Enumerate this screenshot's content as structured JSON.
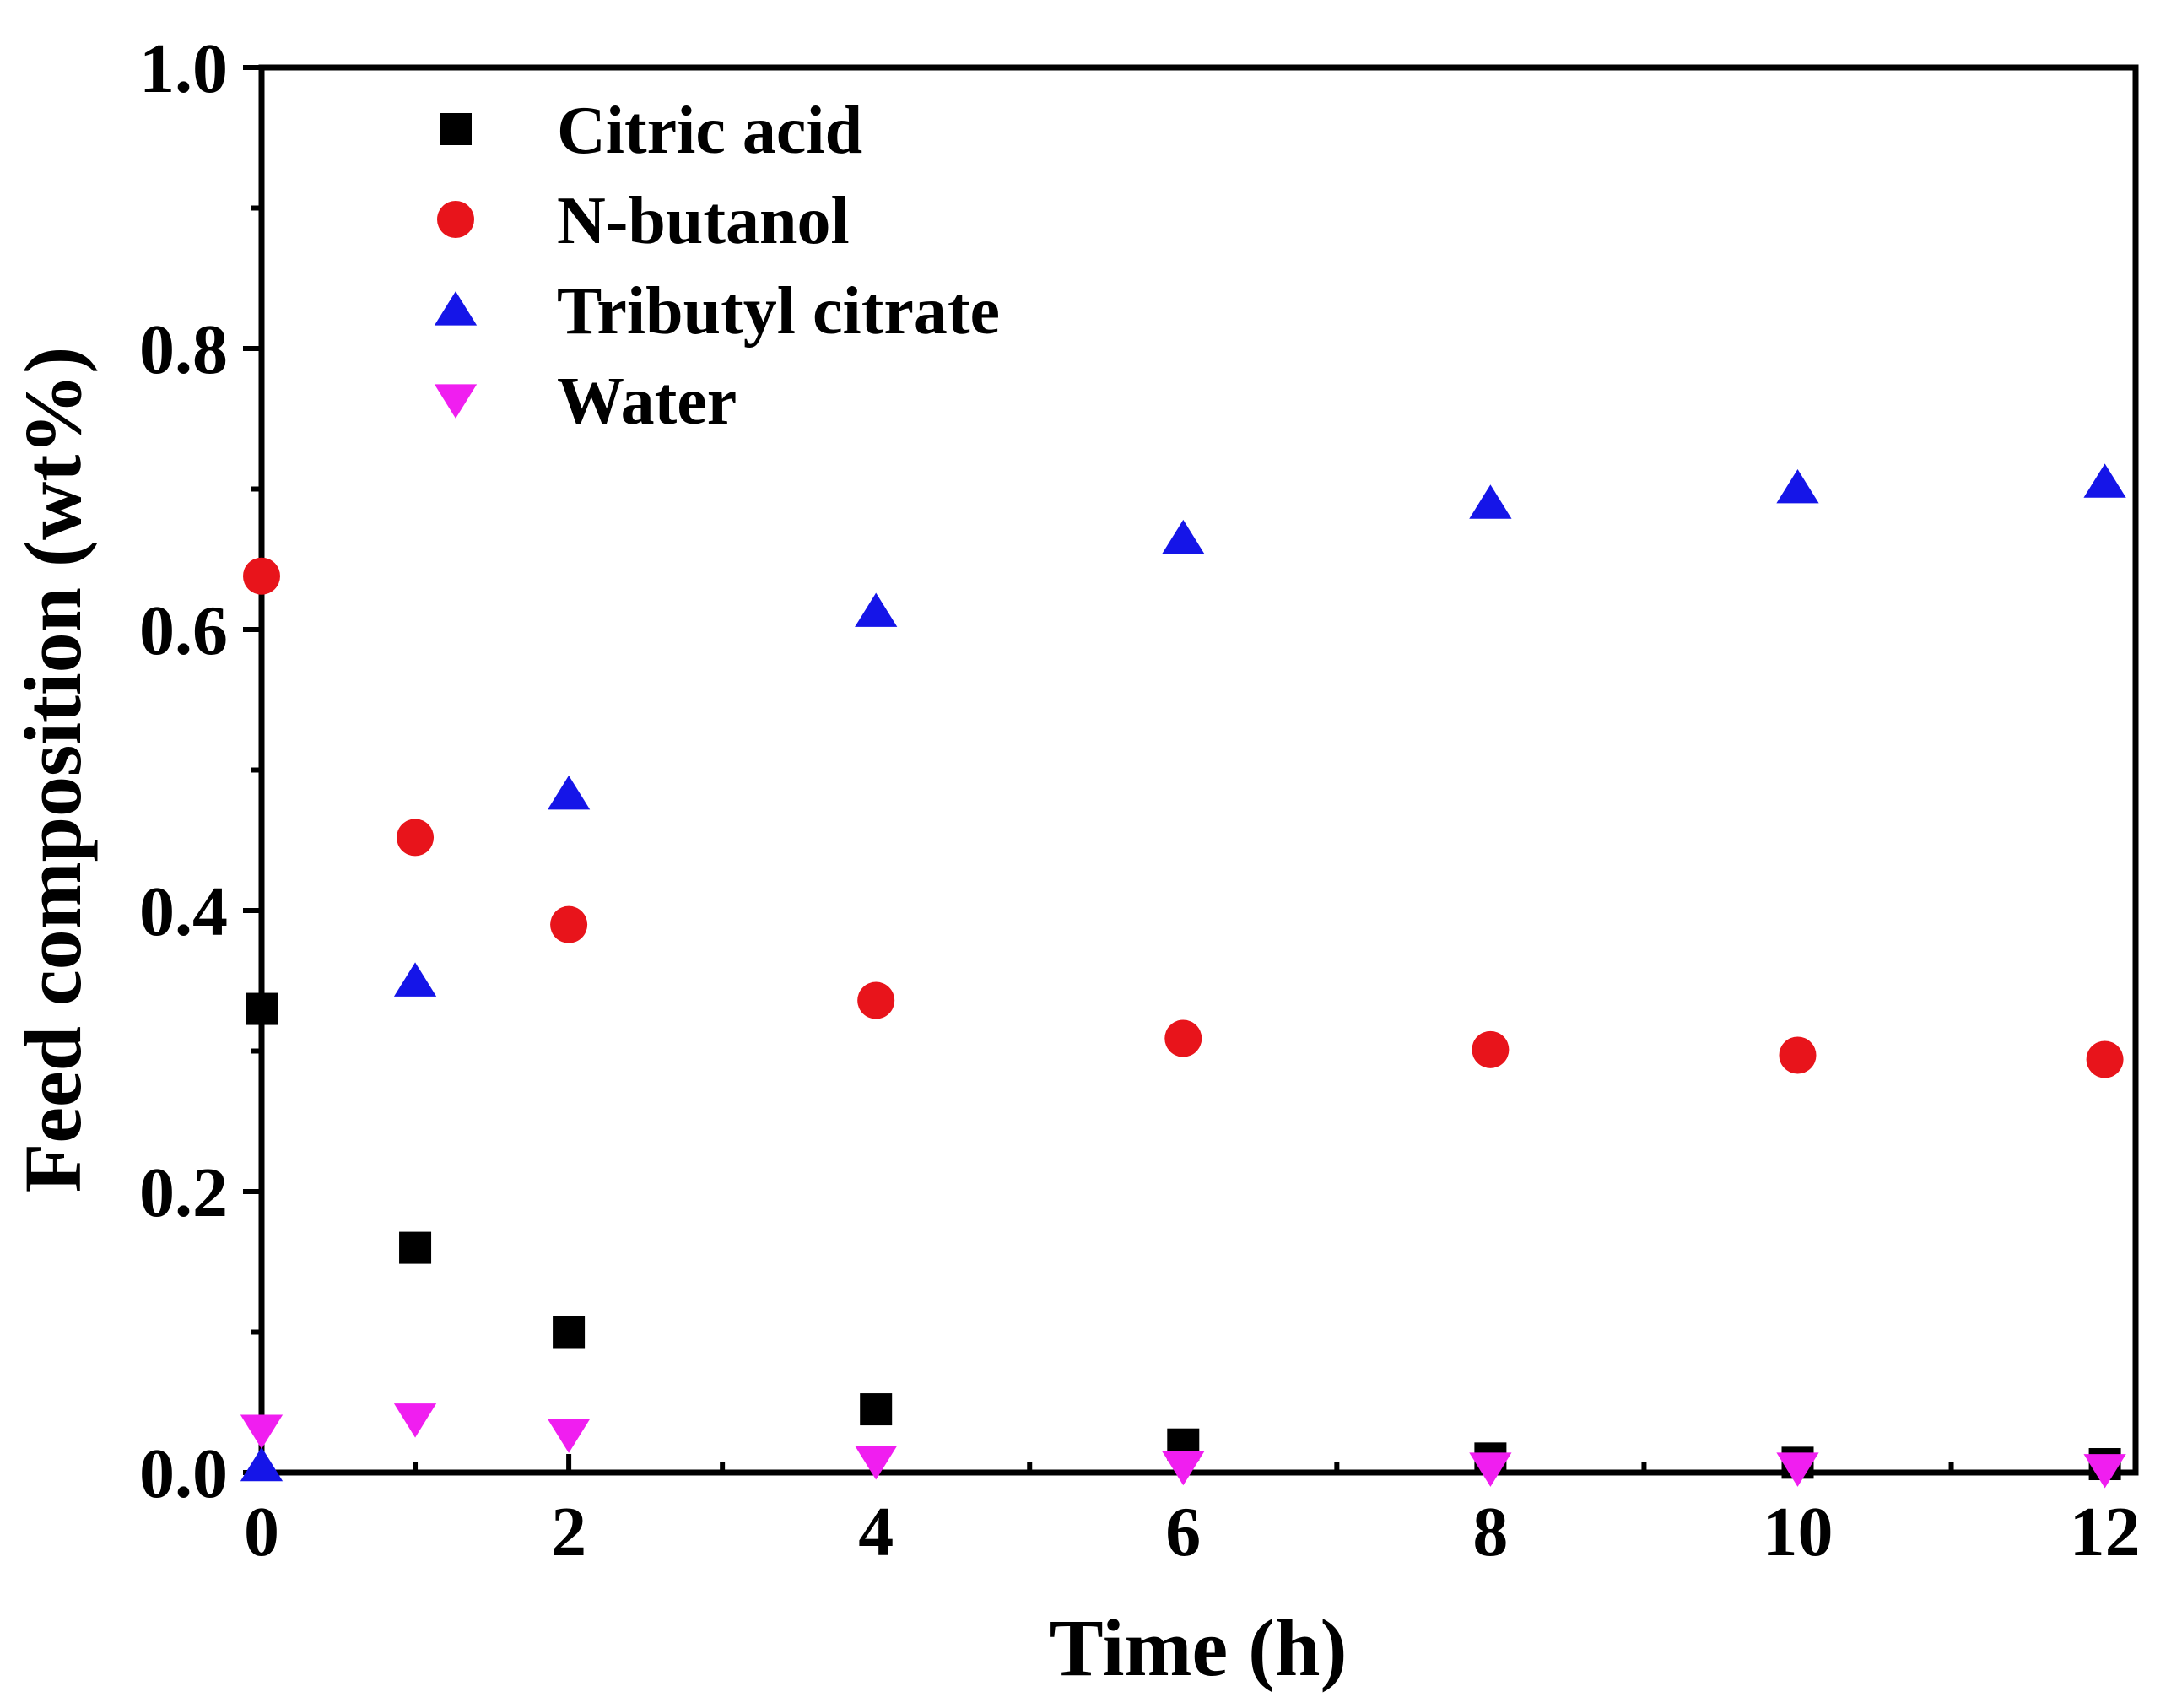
{
  "chart_data": {
    "type": "scatter",
    "title": "",
    "xlabel": "Time (h)",
    "ylabel": "Feed composition (wt%)",
    "xlim": [
      0,
      12.2
    ],
    "ylim": [
      0,
      1.0
    ],
    "xticks": [
      0,
      2,
      4,
      6,
      8,
      10,
      12
    ],
    "xtick_labels": [
      "0",
      "2",
      "4",
      "6",
      "8",
      "10",
      "12"
    ],
    "xminor": [
      1,
      3,
      5,
      7,
      9,
      11
    ],
    "yticks": [
      0.0,
      0.2,
      0.4,
      0.6,
      0.8,
      1.0
    ],
    "ytick_labels": [
      "0.0",
      "0.2",
      "0.4",
      "0.6",
      "0.8",
      "1.0"
    ],
    "yminor": [
      0.1,
      0.3,
      0.5,
      0.7,
      0.9
    ],
    "grid": false,
    "legend_position": "top-left",
    "series": [
      {
        "name": "Citric acid",
        "marker": "square",
        "color": "#000000",
        "x": [
          0,
          1,
          2,
          4,
          6,
          8,
          10,
          12
        ],
        "values": [
          0.33,
          0.16,
          0.1,
          0.045,
          0.02,
          0.01,
          0.007,
          0.006
        ]
      },
      {
        "name": "N-butanol",
        "marker": "circle",
        "color": "#e8141b",
        "x": [
          0,
          1,
          2,
          4,
          6,
          8,
          10,
          12
        ],
        "values": [
          0.638,
          0.452,
          0.39,
          0.336,
          0.309,
          0.301,
          0.297,
          0.294
        ]
      },
      {
        "name": "Tributyl citrate",
        "marker": "triangle-up",
        "color": "#1515e8",
        "x": [
          0,
          1,
          2,
          4,
          6,
          8,
          10,
          12
        ],
        "values": [
          0.005,
          0.35,
          0.483,
          0.613,
          0.665,
          0.69,
          0.701,
          0.705
        ]
      },
      {
        "name": "Water",
        "marker": "triangle-down",
        "color": "#f01ef0",
        "x": [
          0,
          1,
          2,
          4,
          6,
          8,
          10,
          12
        ],
        "values": [
          0.03,
          0.038,
          0.027,
          0.008,
          0.004,
          0.003,
          0.003,
          0.002
        ]
      }
    ]
  }
}
